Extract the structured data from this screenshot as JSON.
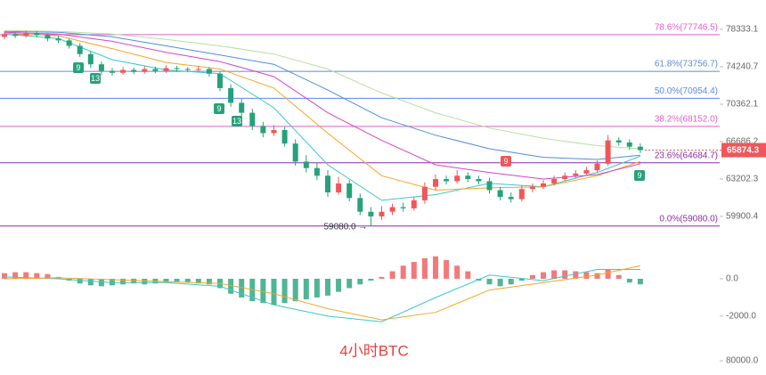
{
  "chart_data": [
    {
      "type": "candlestick",
      "log_scale": true,
      "up_color": "#f0565b",
      "down_color": "#26a17b",
      "open": [
        77500,
        77800,
        77600,
        77900,
        77700,
        77300,
        77100,
        76500,
        75600,
        74500,
        73800,
        73600,
        73900,
        73700,
        74000,
        73800,
        74100,
        74000,
        73900,
        74000,
        73500,
        72000,
        70500,
        69500,
        68200,
        67500,
        67800,
        66500,
        64800,
        64200,
        63500,
        62000,
        62800,
        61500,
        60300,
        59900,
        60300,
        60700,
        60600,
        61300,
        62500,
        63200,
        63000,
        63500,
        63200,
        63000,
        62200,
        61600,
        61400,
        62300,
        62500,
        62800,
        63200,
        63500,
        63700,
        64000,
        64600,
        66800,
        66600,
        66200
      ],
      "high": [
        78100,
        78050,
        78200,
        78150,
        77900,
        77600,
        77300,
        76800,
        75900,
        74800,
        74100,
        74200,
        74150,
        74300,
        74250,
        74400,
        74350,
        74200,
        74300,
        74200,
        73800,
        72400,
        70900,
        69900,
        68600,
        68300,
        68100,
        66900,
        65400,
        64700,
        64000,
        63400,
        63100,
        61900,
        60700,
        60800,
        61000,
        61100,
        61600,
        62900,
        63600,
        63500,
        64000,
        63800,
        63500,
        63300,
        62500,
        62000,
        62600,
        62800,
        63100,
        63500,
        63800,
        64000,
        64300,
        64900,
        67300,
        67100,
        66900,
        66500
      ],
      "low": [
        77200,
        77350,
        77400,
        77450,
        77000,
        76800,
        76200,
        75300,
        74100,
        73400,
        73300,
        73400,
        73450,
        73500,
        73550,
        73600,
        73700,
        73650,
        73700,
        73200,
        71700,
        70100,
        69100,
        67800,
        67100,
        67200,
        66200,
        64400,
        63800,
        63100,
        61600,
        61800,
        61200,
        60000,
        59080,
        59600,
        60000,
        60300,
        60400,
        61000,
        62200,
        62700,
        62800,
        62900,
        62700,
        61900,
        61300,
        61100,
        61200,
        62000,
        62300,
        62600,
        63000,
        63300,
        63500,
        63800,
        64400,
        66300,
        65900,
        65600
      ],
      "close": [
        77800,
        77600,
        77900,
        77700,
        77300,
        77100,
        76500,
        75600,
        74500,
        73800,
        73600,
        73900,
        73700,
        74000,
        73800,
        74100,
        74000,
        73900,
        74000,
        73500,
        72000,
        70500,
        69500,
        68200,
        67500,
        67800,
        66500,
        64800,
        64200,
        63500,
        62000,
        62800,
        61500,
        60300,
        59900,
        60300,
        60700,
        60600,
        61300,
        62500,
        63200,
        63000,
        63500,
        63200,
        63000,
        62200,
        61600,
        61400,
        62300,
        62500,
        62800,
        63200,
        63500,
        63700,
        64000,
        64600,
        66800,
        66600,
        66200,
        65874.3
      ],
      "ma_x": [
        0,
        5,
        10,
        15,
        20,
        25,
        30,
        35,
        40,
        45,
        50,
        55,
        59
      ],
      "series": [
        {
          "color": "#3cc8c8",
          "values": [
            77800,
            77300,
            75000,
            73900,
            73500,
            70000,
            64500,
            61300,
            61800,
            62800,
            62500,
            63800,
            65300
          ]
        },
        {
          "color": "#f5a623",
          "values": [
            77900,
            77600,
            76200,
            74700,
            74000,
            72000,
            67500,
            63500,
            62200,
            62400,
            62500,
            63500,
            64800
          ]
        },
        {
          "color": "#d545c8",
          "values": [
            78000,
            77800,
            77000,
            75800,
            74800,
            73200,
            69500,
            66800,
            64500,
            63800,
            63200,
            63600,
            64600
          ]
        },
        {
          "color": "#4c8fe0",
          "values": [
            78100,
            78000,
            77500,
            76500,
            75500,
            74500,
            71800,
            69000,
            67300,
            66000,
            65200,
            65000,
            65400
          ]
        },
        {
          "color": "#b5e0a0",
          "values": [
            78200,
            78100,
            77800,
            77200,
            76500,
            75600,
            74000,
            71500,
            69500,
            68000,
            67000,
            66300,
            66000
          ]
        }
      ],
      "ylim": [
        58460,
        81700
      ],
      "yticks": [
        78333.1,
        74240.7,
        70362.1,
        66686.2,
        63202.3,
        59900.4
      ],
      "fib_levels": [
        {
          "value": 77746.5,
          "label": "78.6%(77746.5)",
          "color": "#e05fc8"
        },
        {
          "value": 73756.7,
          "label": "61.8%(73756.7)",
          "color": "#5b8be0"
        },
        {
          "value": 70954.4,
          "label": "50.0%(70954.4)",
          "color": "#5b8be0"
        },
        {
          "value": 68152.0,
          "label": "38.2%(68152.0)",
          "color": "#e05fc8"
        },
        {
          "value": 64684.7,
          "label": "23.6%(64684.7)",
          "color": "#8a2fa8"
        },
        {
          "value": 59080.0,
          "label": "0.0%(59080.0)",
          "color": "#8a2fa8"
        }
      ],
      "low_annotation": "59080.0 →",
      "td_labels": [
        {
          "text": "9",
          "color": "#26a17b"
        },
        {
          "text": "13",
          "color": "#26a17b"
        },
        {
          "text": "9",
          "color": "#26a17b"
        },
        {
          "text": "13",
          "color": "#26a17b"
        },
        {
          "text": "9",
          "color": "#f0565b"
        },
        {
          "text": "9",
          "color": "#26a17b"
        }
      ]
    },
    {
      "type": "bar",
      "title": "4小时BTC",
      "up_color": "#f0565b",
      "down_color": "#26a17b",
      "values": [
        300,
        350,
        350,
        300,
        250,
        100,
        -100,
        -250,
        -350,
        -400,
        -350,
        -300,
        -250,
        -300,
        -250,
        -200,
        -150,
        -200,
        -250,
        -300,
        -500,
        -800,
        -1000,
        -1200,
        -1300,
        -1400,
        -1300,
        -1200,
        -1100,
        -1000,
        -900,
        -700,
        -500,
        -300,
        -100,
        100,
        400,
        700,
        900,
        1100,
        1200,
        1000,
        700,
        400,
        -100,
        -300,
        -400,
        -300,
        -100,
        200,
        350,
        450,
        450,
        400,
        350,
        300,
        500,
        200,
        -200,
        -300
      ],
      "line_x": [
        0,
        5,
        10,
        15,
        20,
        25,
        30,
        35,
        40,
        45,
        50,
        55,
        59
      ],
      "series": [
        {
          "color": "#3cc8c8",
          "values": [
            100,
            0,
            -200,
            -200,
            -400,
            -1400,
            -2000,
            -2300,
            -1000,
            200,
            -100,
            500,
            500
          ]
        },
        {
          "color": "#f5a623",
          "values": [
            0,
            50,
            -50,
            -150,
            -250,
            -800,
            -1600,
            -2200,
            -1800,
            -600,
            -200,
            200,
            700
          ]
        }
      ],
      "ylim": [
        -3670,
        1570
      ],
      "yticks": [
        {
          "value": 0,
          "label": "0.0"
        },
        {
          "value": -2000,
          "label": "-2000.0"
        }
      ]
    },
    {
      "type": "bar",
      "values": [],
      "ylim": [
        0,
        100000
      ],
      "yticks": [
        {
          "value": 80000,
          "label": "80000.0"
        }
      ]
    }
  ]
}
